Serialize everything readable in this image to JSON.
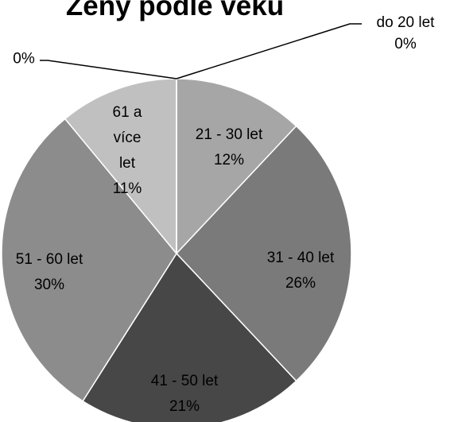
{
  "chart_data": {
    "type": "pie",
    "title": "Ženy podle věku",
    "categories": [
      "do 20 let",
      "21 - 30 let",
      "31 - 40 let",
      "41 - 50 let",
      "51 - 60 let",
      "61 a více let",
      null
    ],
    "values": [
      0,
      12,
      26,
      21,
      30,
      11,
      0
    ],
    "value_labels": [
      "0%",
      "12%",
      "26%",
      "21%",
      "30%",
      "11%",
      "0%"
    ],
    "colors": [
      "#d9d9d9",
      "#a6a6a6",
      "#7a7a7a",
      "#474747",
      "#8c8c8c",
      "#c0c0c0",
      "#e0e0e0"
    ]
  }
}
